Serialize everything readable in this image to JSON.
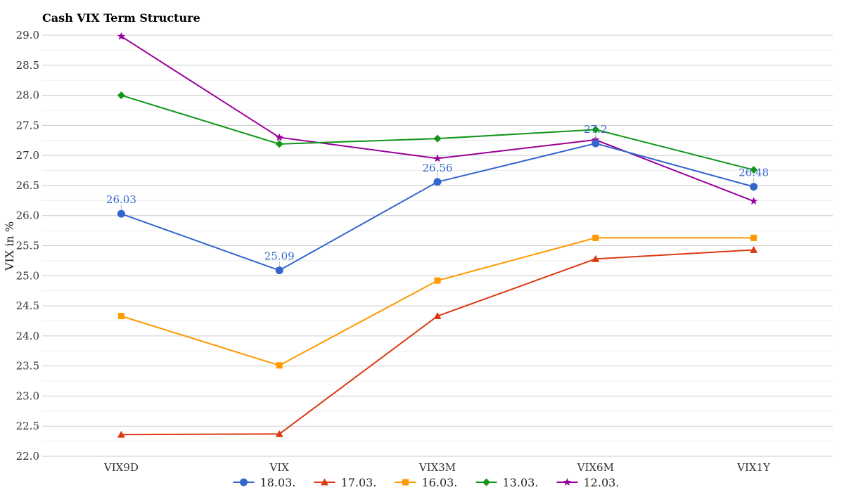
{
  "chart_data": {
    "type": "line",
    "title": "Cash VIX Term Structure",
    "ylabel": "VIX in %",
    "xlabel": "",
    "categories": [
      "VIX9D",
      "VIX",
      "VIX3M",
      "VIX6M",
      "VIX1Y"
    ],
    "ylim": [
      22.0,
      29.0
    ],
    "yticks": [
      "22.0",
      "22.5",
      "23.0",
      "23.5",
      "24.0",
      "24.5",
      "25.0",
      "25.5",
      "26.0",
      "26.5",
      "27.0",
      "27.5",
      "28.0",
      "28.5",
      "29.0"
    ],
    "grid": true,
    "legend_position": "bottom",
    "series": [
      {
        "name": "18.03.",
        "color": "#3366cc",
        "marker": "circle",
        "values": [
          26.03,
          25.09,
          26.56,
          27.2,
          26.48
        ],
        "labels": [
          "26.03",
          "25.09",
          "26.56",
          "27.2",
          "26.48"
        ]
      },
      {
        "name": "17.03.",
        "color": "#dc3912",
        "marker": "triangle",
        "values": [
          22.36,
          22.37,
          24.33,
          25.28,
          25.43
        ]
      },
      {
        "name": "16.03.",
        "color": "#ff9900",
        "marker": "square",
        "values": [
          24.33,
          23.51,
          24.92,
          25.63,
          25.63
        ]
      },
      {
        "name": "13.03.",
        "color": "#109618",
        "marker": "diamond",
        "values": [
          28.0,
          27.19,
          27.28,
          27.43,
          26.76
        ]
      },
      {
        "name": "12.03.",
        "color": "#990099",
        "marker": "star",
        "values": [
          28.98,
          27.3,
          26.95,
          27.26,
          26.24
        ]
      }
    ]
  }
}
